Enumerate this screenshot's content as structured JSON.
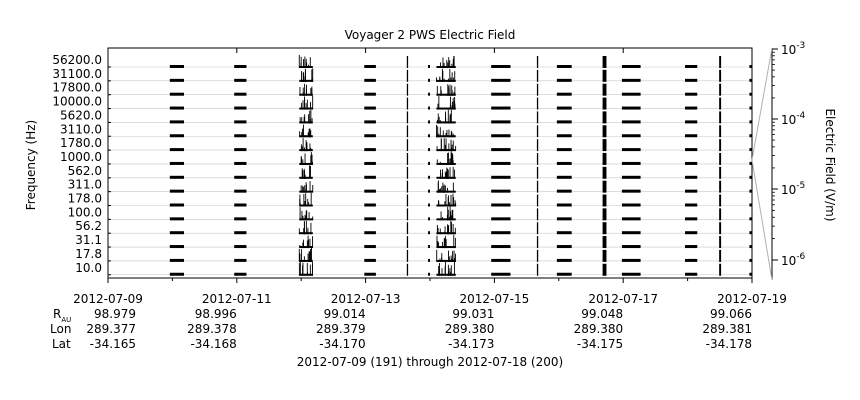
{
  "chart_data": {
    "type": "line",
    "title": "Voyager 2 PWS Electric Field",
    "ylabel": "Frequency (Hz)",
    "colorbar_label": "Electric Field (V/m)",
    "colorbar_ticks": [
      {
        "base": "10",
        "exp": "-3"
      },
      {
        "base": "10",
        "exp": "-4"
      },
      {
        "base": "10",
        "exp": "-5"
      },
      {
        "base": "10",
        "exp": "-6"
      }
    ],
    "frequency_channels": [
      "56200.0",
      "31100.0",
      "17800.0",
      "10000.0",
      "5620.0",
      "3110.0",
      "1780.0",
      "1000.0",
      "562.0",
      "311.0",
      "178.0",
      "100.0",
      "56.2",
      "31.1",
      "17.8",
      "10.0"
    ],
    "xrange": [
      "2012-07-09",
      "2012-07-19"
    ],
    "x_ticks": [
      {
        "date": "2012-07-09",
        "r": "98.979",
        "lon": "289.377",
        "lat": "-34.165"
      },
      {
        "date": "2012-07-11",
        "r": "98.996",
        "lon": "289.378",
        "lat": "-34.168"
      },
      {
        "date": "2012-07-13",
        "r": "99.014",
        "lon": "289.379",
        "lat": "-34.170"
      },
      {
        "date": "2012-07-15",
        "r": "99.031",
        "lon": "289.380",
        "lat": "-34.173"
      },
      {
        "date": "2012-07-17",
        "r": "99.048",
        "lon": "289.380",
        "lat": "-34.175"
      },
      {
        "date": "2012-07-19",
        "r": "99.066",
        "lon": "289.381",
        "lat": "-34.178"
      }
    ],
    "row_labels": {
      "r": "R",
      "r_sub": "AU",
      "lon": "Lon",
      "lat": "Lat"
    },
    "caption": "2012-07-09 (191) through 2012-07-18 (200)",
    "colors": {
      "trace": "#000000",
      "guide": "#b0b0b0",
      "axis": "#000000"
    },
    "data_segments": [
      {
        "start_day": 0.96,
        "end_day": 1.18,
        "kind": "block"
      },
      {
        "start_day": 1.96,
        "end_day": 2.15,
        "kind": "block"
      },
      {
        "start_day": 2.97,
        "end_day": 3.06,
        "kind": "burst"
      },
      {
        "start_day": 3.05,
        "end_day": 3.18,
        "kind": "burst"
      },
      {
        "start_day": 3.98,
        "end_day": 4.16,
        "kind": "block"
      },
      {
        "start_day": 4.64,
        "end_day": 4.66,
        "kind": "spike"
      },
      {
        "start_day": 4.97,
        "end_day": 5.0,
        "kind": "block"
      },
      {
        "start_day": 5.1,
        "end_day": 5.4,
        "kind": "burst"
      },
      {
        "start_day": 5.95,
        "end_day": 6.25,
        "kind": "block"
      },
      {
        "start_day": 6.66,
        "end_day": 6.68,
        "kind": "spike"
      },
      {
        "start_day": 6.97,
        "end_day": 7.2,
        "kind": "block"
      },
      {
        "start_day": 7.68,
        "end_day": 7.74,
        "kind": "spike"
      },
      {
        "start_day": 7.98,
        "end_day": 8.27,
        "kind": "block"
      },
      {
        "start_day": 8.96,
        "end_day": 9.15,
        "kind": "block"
      },
      {
        "start_day": 9.49,
        "end_day": 9.52,
        "kind": "spike"
      },
      {
        "start_day": 9.96,
        "end_day": 10.0,
        "kind": "block"
      }
    ]
  }
}
